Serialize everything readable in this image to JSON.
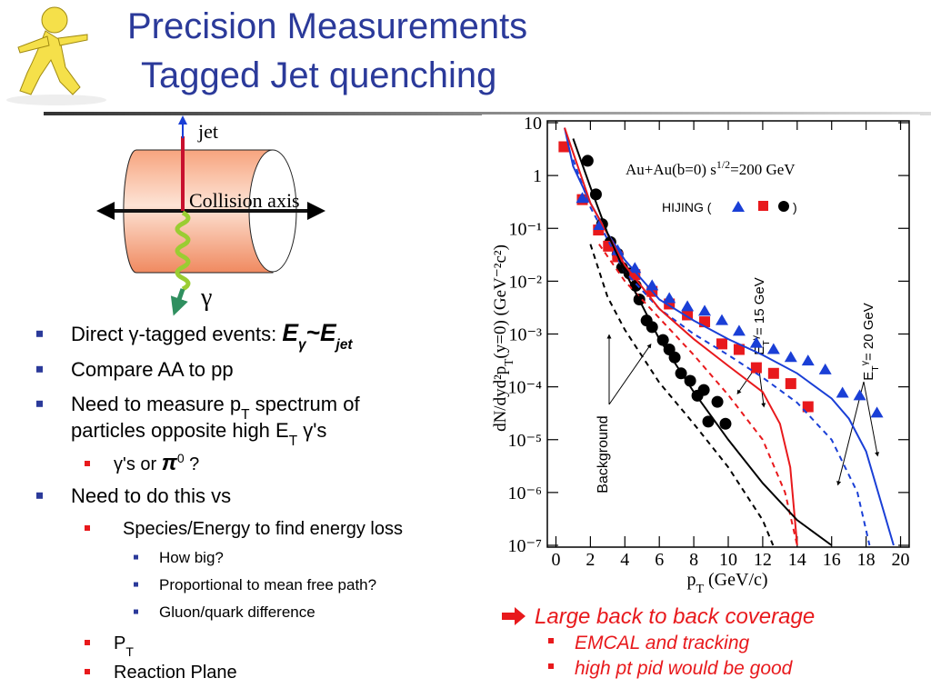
{
  "title": [
    "Precision Measurements",
    "Tagged Jet quenching"
  ],
  "diagram": {
    "jet": "jet",
    "axis": "Collision axis",
    "photon": "γ"
  },
  "bullets": [
    [
      [
        "Direct γ-tagged events: ",
        "E",
        "γ",
        "~",
        "E",
        "jet"
      ]
    ],
    [
      [
        "Compare AA to pp"
      ]
    ],
    [
      [
        "Need to measure p",
        "T",
        " spectrum of"
      ],
      [
        "particles opposite high E",
        "T",
        " γ's"
      ]
    ],
    [
      [
        "γ's or ",
        "π",
        "0",
        " ?"
      ]
    ],
    [
      [
        "Need to do this vs"
      ]
    ],
    [
      [
        "Species/Energy to find energy loss"
      ]
    ],
    [
      [
        "How big?"
      ]
    ],
    [
      [
        "Proportional to mean free path?"
      ]
    ],
    [
      [
        "Gluon/quark difference"
      ]
    ],
    [
      [
        "P",
        "T"
      ]
    ],
    [
      [
        "Reaction Plane"
      ]
    ]
  ],
  "right_bullets": [
    "Large back to back coverage",
    "EMCAL and tracking",
    "high pt pid would be good"
  ],
  "chart_data": {
    "type": "scatter",
    "xlabel": [
      "p",
      "T",
      " (GeV/c)"
    ],
    "ylabel": [
      "dN/dyd²p",
      "T",
      "(y=0) (GeV⁻²c²)"
    ],
    "annotations": [
      [
        "Au+Au(b=0)  s",
        "1/2",
        "=200 GeV"
      ],
      [
        "HIJING ("
      ],
      [
        ")"
      ],
      [
        "Background"
      ],
      [
        "E",
        "T",
        "γ",
        "= 15 GeV"
      ],
      [
        "E",
        "T",
        "γ",
        "= 20 GeV"
      ]
    ],
    "xlim": [
      -0.5,
      20.5
    ],
    "xticks": [
      0,
      2,
      4,
      6,
      8,
      10,
      12,
      14,
      16,
      18,
      20
    ],
    "ylim": [
      1e-07,
      10
    ],
    "log_y": true,
    "yticks": [
      10,
      1,
      {
        "value": 0.1,
        "label": "10⁻¹"
      },
      {
        "value": 0.01,
        "label": "10⁻²"
      },
      {
        "value": 0.001,
        "label": "10⁻³"
      },
      {
        "value": 0.0001,
        "label": "10⁻⁴"
      },
      {
        "value": 1e-05,
        "label": "10⁻⁵"
      },
      {
        "value": 1e-06,
        "label": "10⁻⁶"
      },
      {
        "value": 1e-07,
        "label": "10⁻⁷"
      }
    ],
    "series": [
      {
        "color": "#000000",
        "marker": "circle",
        "line": "none",
        "x": [
          1.84,
          2.32,
          2.68,
          3.16,
          3.58,
          3.84,
          4.26,
          4.63,
          4.84,
          5.26,
          5.58,
          6.21,
          6.58,
          6.89,
          7.26,
          7.79,
          8.21,
          8.58,
          8.84,
          9.37,
          9.84
        ],
        "values": [
          1.9,
          0.44,
          0.12,
          0.055,
          0.033,
          0.018,
          0.014,
          0.0082,
          0.0045,
          0.0018,
          0.00135,
          0.00077,
          0.00051,
          0.00036,
          0.00018,
          0.00013,
          6.8e-05,
          8.7e-05,
          2.2e-05,
          5.2e-05,
          2e-05
        ]
      },
      {
        "color": "#e8191c",
        "marker": "square",
        "line": "none",
        "x": [
          0.47,
          1.53,
          2.47,
          3.05,
          3.58,
          4.58,
          5.58,
          6.58,
          7.63,
          8.63,
          9.63,
          10.63,
          11.63,
          12.63,
          13.63,
          14.63
        ],
        "values": [
          3.5,
          0.35,
          0.093,
          0.046,
          0.029,
          0.0133,
          0.0064,
          0.0037,
          0.0023,
          0.0017,
          0.00065,
          0.00051,
          0.00023,
          0.00018,
          0.000115,
          4.2e-05
        ]
      },
      {
        "color": "#1a3fd6",
        "marker": "triangle",
        "line": "none",
        "x": [
          1.53,
          2.53,
          3.58,
          4.58,
          5.58,
          6.58,
          7.63,
          8.63,
          9.63,
          10.63,
          11.63,
          12.63,
          13.63,
          14.63,
          15.63,
          16.63,
          17.63,
          18.63
        ],
        "values": [
          0.37,
          0.114,
          0.038,
          0.0175,
          0.0082,
          0.0047,
          0.0033,
          0.0027,
          0.0018,
          0.00113,
          0.00067,
          0.00051,
          0.00036,
          0.00031,
          0.00021,
          7.6e-05,
          6.8e-05,
          3.2e-05
        ]
      },
      {
        "color": "#1a3fd6",
        "marker": "none",
        "line": "solid",
        "x": [
          0.5,
          1,
          2,
          3,
          4,
          6,
          8,
          10,
          12,
          14,
          16,
          17,
          18,
          19.6
        ],
        "values": [
          8,
          1.5,
          0.3,
          0.08,
          0.025,
          0.0045,
          0.0018,
          0.0008,
          0.0004,
          0.00018,
          6e-05,
          2.5e-05,
          6e-06,
          1e-07
        ]
      },
      {
        "color": "#1a3fd6",
        "marker": "none",
        "line": "dashed",
        "x": [
          1,
          2,
          4,
          6,
          8,
          10,
          12,
          14,
          16,
          17.5,
          18.2
        ],
        "values": [
          2,
          0.25,
          0.015,
          0.003,
          0.001,
          0.0004,
          0.00015,
          5e-05,
          1e-05,
          1e-06,
          1e-07
        ]
      },
      {
        "color": "#e8191c",
        "marker": "none",
        "line": "solid",
        "x": [
          0.5,
          2,
          4,
          6,
          8,
          10,
          12,
          13,
          13.6,
          14
        ],
        "values": [
          8,
          0.3,
          0.02,
          0.003,
          0.0008,
          0.00025,
          8e-05,
          2e-05,
          3e-06,
          1e-07
        ]
      },
      {
        "color": "#e8191c",
        "marker": "none",
        "line": "dashed",
        "x": [
          2.5,
          4,
          6,
          8,
          10,
          12,
          13.3,
          14
        ],
        "values": [
          0.05,
          0.01,
          0.002,
          0.0004,
          7e-05,
          1e-05,
          1e-06,
          1e-07
        ]
      },
      {
        "color": "#000000",
        "marker": "none",
        "line": "solid",
        "x": [
          1,
          2,
          3,
          4,
          6,
          8,
          10,
          12,
          14,
          16
        ],
        "values": [
          5,
          0.6,
          0.08,
          0.015,
          0.0008,
          8e-05,
          1e-05,
          1.5e-06,
          3e-07,
          1e-07
        ]
      },
      {
        "color": "#000000",
        "marker": "none",
        "line": "dashed",
        "x": [
          2,
          3,
          4,
          6,
          8,
          10,
          12,
          12.6
        ],
        "values": [
          0.05,
          0.005,
          0.0012,
          0.00012,
          2e-05,
          3e-06,
          3e-07,
          1e-07
        ]
      }
    ]
  }
}
